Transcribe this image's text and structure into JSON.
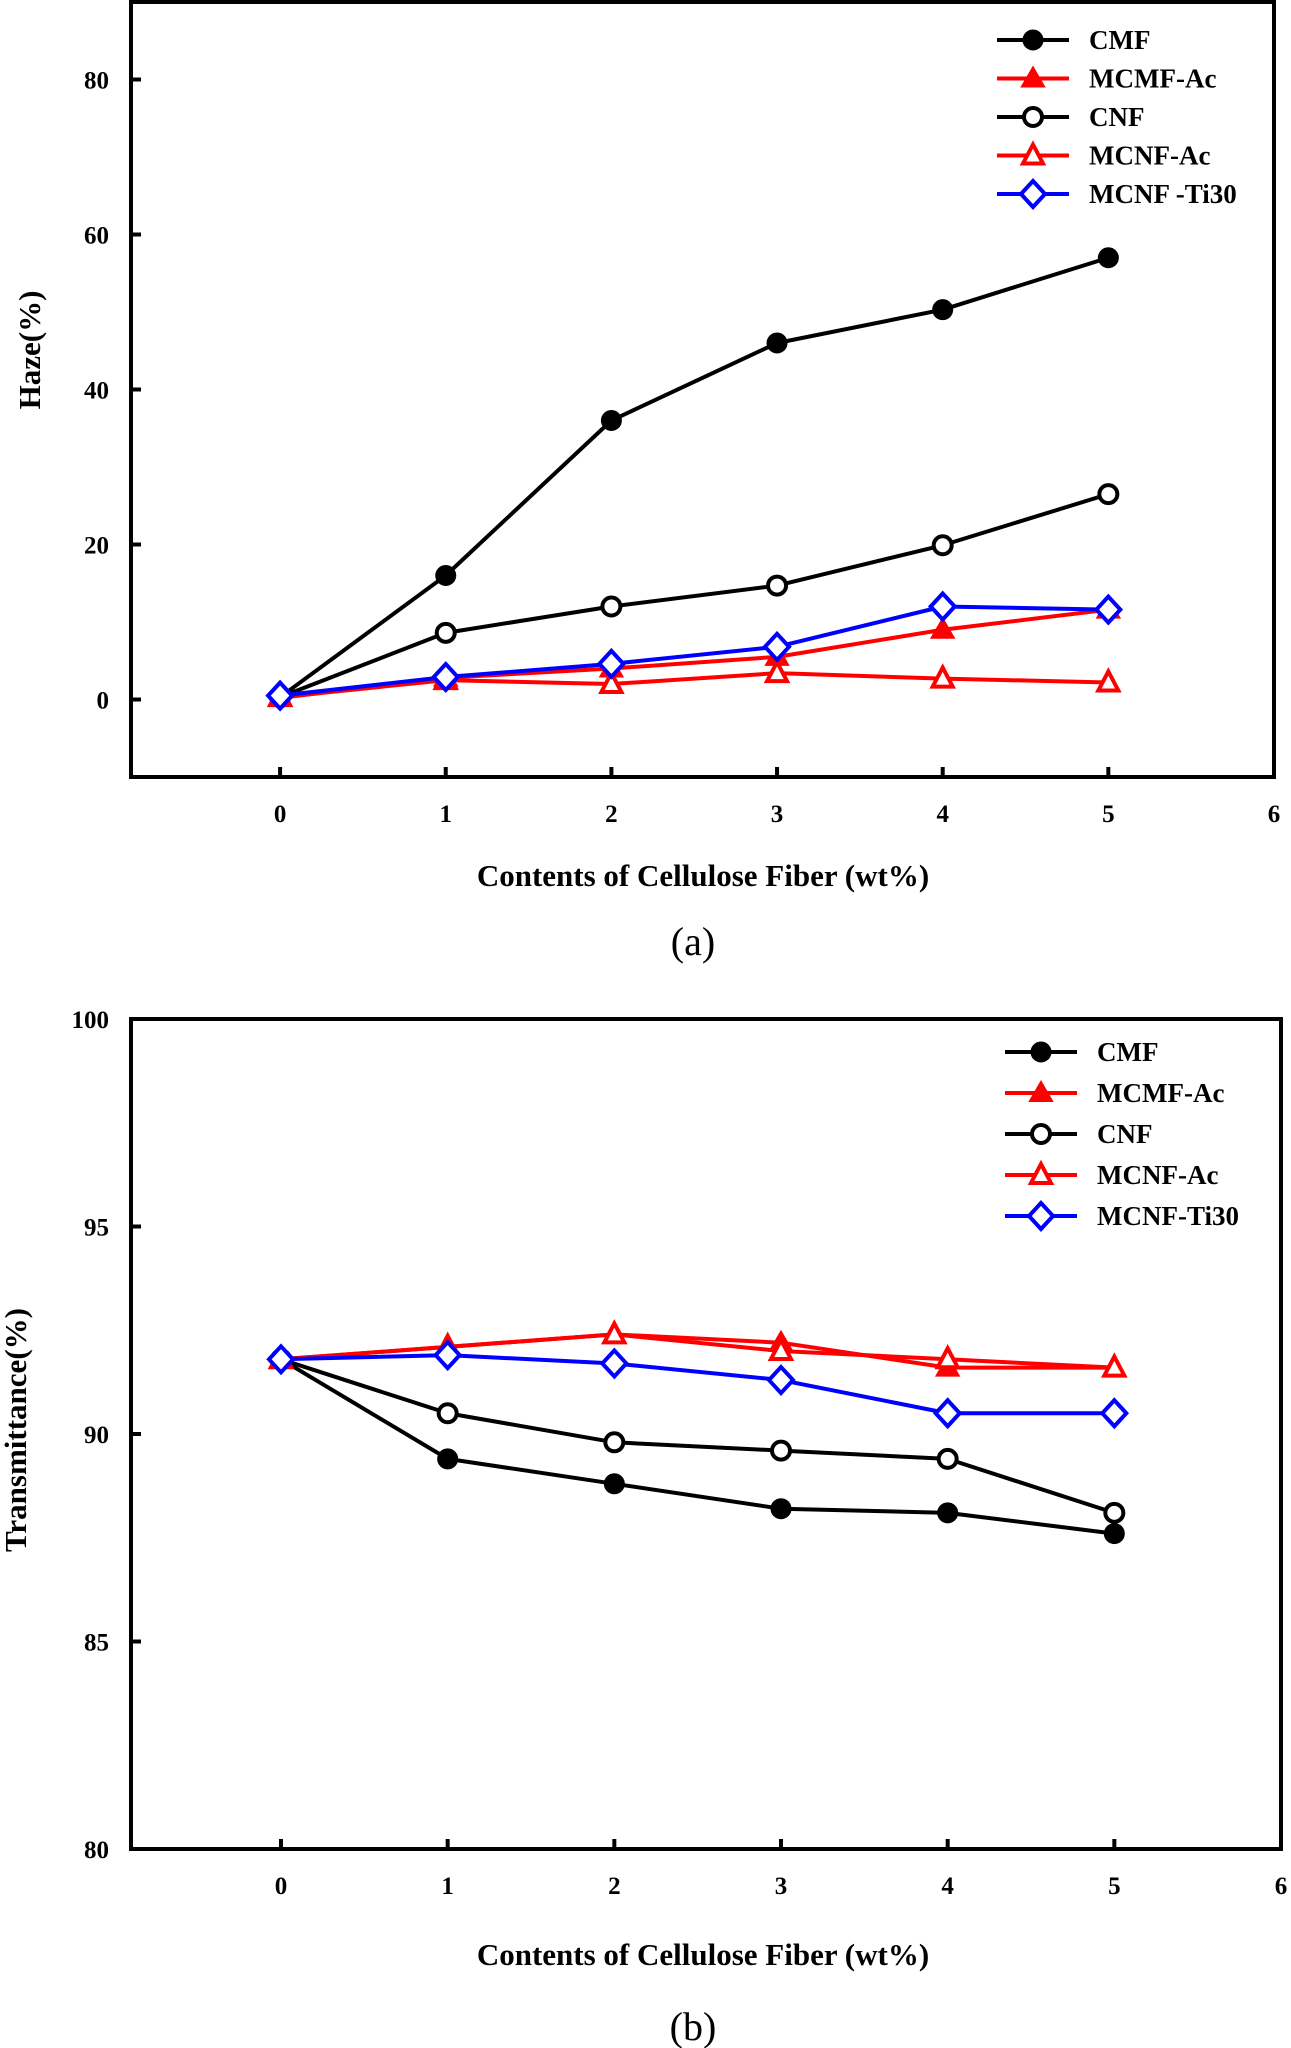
{
  "chart_data": [
    {
      "id": "a",
      "type": "line",
      "title": "",
      "caption": "(a)",
      "xlabel": "Contents of  Cellulose Fiber (wt%)",
      "ylabel": "Haze(%)",
      "xlim": [
        -0.9,
        6
      ],
      "ylim": [
        -10,
        90
      ],
      "xticks": [
        0,
        1,
        2,
        3,
        4,
        5,
        6
      ],
      "yticks": [
        0,
        20,
        40,
        60,
        80
      ],
      "grid": false,
      "legend_position": "top-right",
      "x": [
        0,
        1,
        2,
        3,
        4,
        5
      ],
      "series": [
        {
          "name": "CMF",
          "color": "#000000",
          "marker": "filled-circle",
          "values": [
            0.3,
            16.0,
            36.0,
            46.0,
            50.3,
            57.0
          ]
        },
        {
          "name": "MCMF-Ac",
          "color": "#ff0000",
          "marker": "filled-triangle",
          "values": [
            0.2,
            2.8,
            4.0,
            5.5,
            9.0,
            11.6
          ]
        },
        {
          "name": "CNF",
          "color": "#000000",
          "marker": "open-circle",
          "values": [
            0.3,
            8.6,
            12.0,
            14.7,
            19.9,
            26.5
          ]
        },
        {
          "name": "MCNF-Ac",
          "color": "#ff0000",
          "marker": "open-triangle",
          "values": [
            0.3,
            2.5,
            2.0,
            3.4,
            2.7,
            2.2
          ]
        },
        {
          "name": "MCNF -Ti30",
          "color": "#0000ff",
          "marker": "open-diamond",
          "values": [
            0.5,
            2.9,
            4.6,
            6.8,
            12.0,
            11.6
          ]
        }
      ]
    },
    {
      "id": "b",
      "type": "line",
      "title": "",
      "caption": "(b)",
      "xlabel": "Contents of  Cellulose Fiber (wt%)",
      "ylabel": "Transmittance(%)",
      "xlim": [
        -0.9,
        6
      ],
      "ylim": [
        80,
        100
      ],
      "xticks": [
        0,
        1,
        2,
        3,
        4,
        5,
        6
      ],
      "yticks": [
        80,
        85,
        90,
        95,
        100
      ],
      "grid": false,
      "legend_position": "top-right",
      "x": [
        0,
        1,
        2,
        3,
        4,
        5
      ],
      "series": [
        {
          "name": "CMF",
          "color": "#000000",
          "marker": "filled-circle",
          "values": [
            91.8,
            89.4,
            88.8,
            88.2,
            88.1,
            87.6
          ]
        },
        {
          "name": "MCMF-Ac",
          "color": "#ff0000",
          "marker": "filled-triangle",
          "values": [
            91.8,
            92.1,
            92.4,
            92.2,
            91.6,
            91.6
          ]
        },
        {
          "name": "CNF",
          "color": "#000000",
          "marker": "open-circle",
          "values": [
            91.8,
            90.5,
            89.8,
            89.6,
            89.4,
            88.1
          ]
        },
        {
          "name": "MCNF-Ac",
          "color": "#ff0000",
          "marker": "open-triangle",
          "values": [
            91.8,
            92.1,
            92.4,
            92.0,
            91.8,
            91.6
          ]
        },
        {
          "name": "MCNF-Ti30",
          "color": "#0000ff",
          "marker": "open-diamond",
          "values": [
            91.8,
            91.9,
            91.7,
            91.3,
            90.5,
            90.5
          ]
        }
      ]
    }
  ]
}
